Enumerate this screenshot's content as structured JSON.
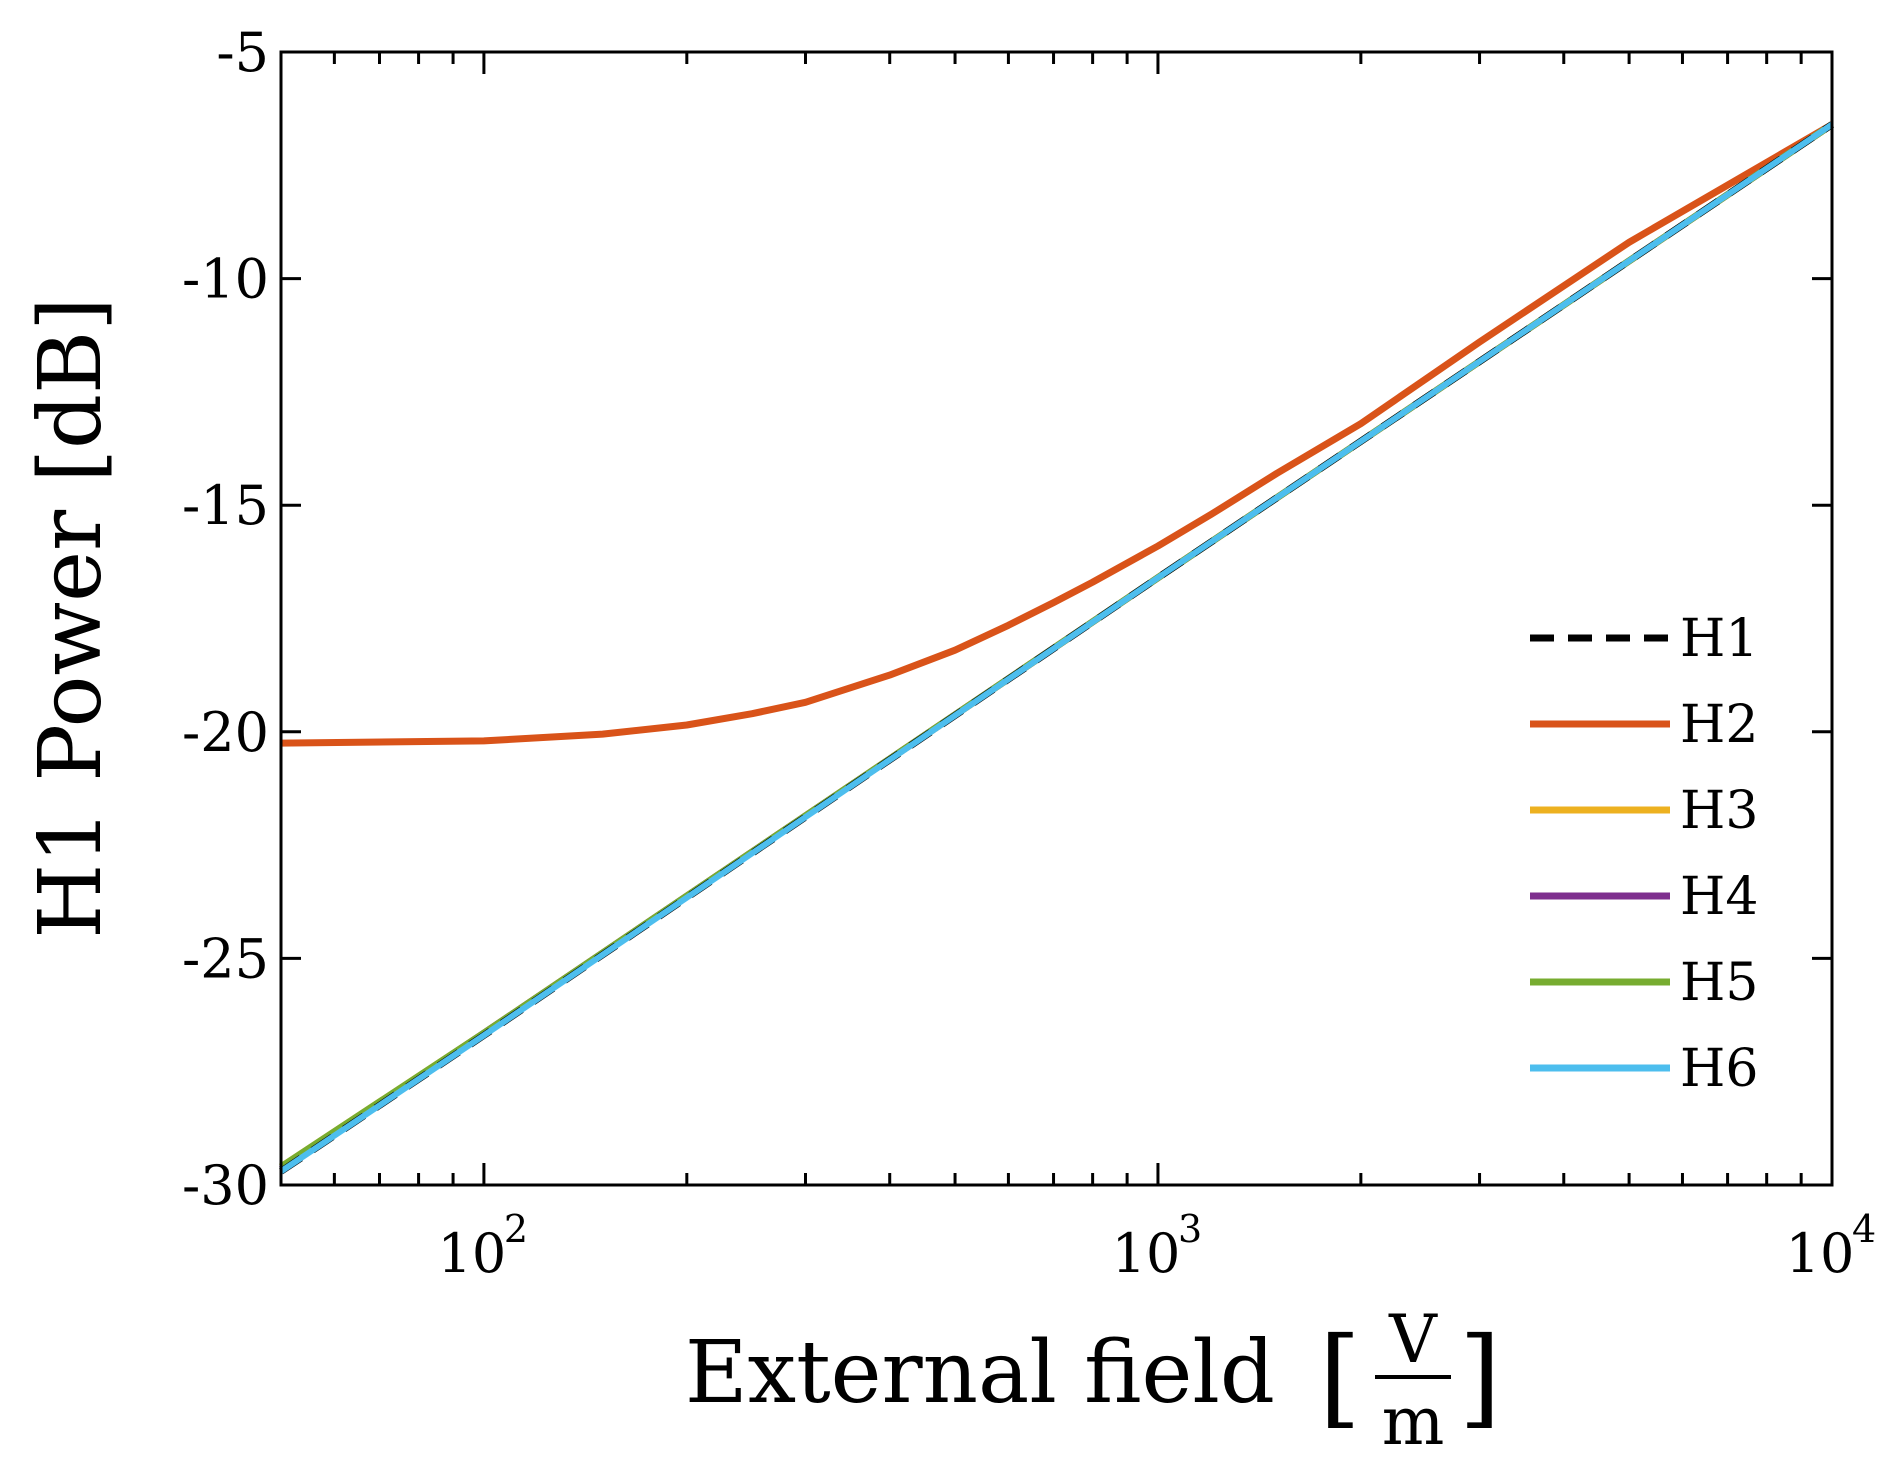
{
  "chart_data": {
    "type": "line",
    "xscale": "log",
    "xlabel": "External field",
    "xunit_numerator": "V",
    "xunit_denominator": "m",
    "ylabel": "H1 Power [dB]",
    "xlim": [
      50,
      10000
    ],
    "ylim": [
      -30,
      -5
    ],
    "xticks": [
      100,
      1000,
      10000
    ],
    "xtick_labels": [
      {
        "base": "10",
        "exp": "2"
      },
      {
        "base": "10",
        "exp": "3"
      },
      {
        "base": "10",
        "exp": "4"
      }
    ],
    "yticks": [
      -30,
      -25,
      -20,
      -15,
      -10,
      -5
    ],
    "ytick_labels": [
      "-30",
      "-25",
      "-20",
      "-15",
      "-10",
      "-5"
    ],
    "legend_position": "right",
    "series": [
      {
        "name": "H1",
        "color": "#000000",
        "dashed": true,
        "x": [
          50,
          100,
          1000,
          10000
        ],
        "y": [
          -29.7,
          -26.7,
          -16.6,
          -6.6
        ]
      },
      {
        "name": "H2",
        "color": "#D95319",
        "dashed": false,
        "x": [
          50,
          100,
          150,
          200,
          250,
          300,
          400,
          500,
          600,
          700,
          800,
          1000,
          1200,
          1500,
          2000,
          3000,
          5000,
          10000
        ],
        "y": [
          -20.25,
          -20.2,
          -20.05,
          -19.85,
          -19.6,
          -19.35,
          -18.75,
          -18.2,
          -17.65,
          -17.15,
          -16.7,
          -15.9,
          -15.2,
          -14.3,
          -13.2,
          -11.4,
          -9.2,
          -6.6
        ]
      },
      {
        "name": "H3",
        "color": "#EDB120",
        "dashed": false,
        "x": [
          50,
          100,
          1000,
          10000
        ],
        "y": [
          -29.6,
          -26.65,
          -16.6,
          -6.6
        ]
      },
      {
        "name": "H4",
        "color": "#7E2F8E",
        "dashed": false,
        "x": [
          50,
          100,
          1000,
          10000
        ],
        "y": [
          -29.65,
          -26.65,
          -16.6,
          -6.6
        ]
      },
      {
        "name": "H5",
        "color": "#77AC30",
        "dashed": false,
        "x": [
          50,
          100,
          1000,
          10000
        ],
        "y": [
          -29.6,
          -26.65,
          -16.6,
          -6.6
        ]
      },
      {
        "name": "H6",
        "color": "#4DBEEE",
        "dashed": false,
        "x": [
          50,
          100,
          1000,
          10000
        ],
        "y": [
          -29.7,
          -26.7,
          -16.6,
          -6.6
        ]
      }
    ]
  }
}
